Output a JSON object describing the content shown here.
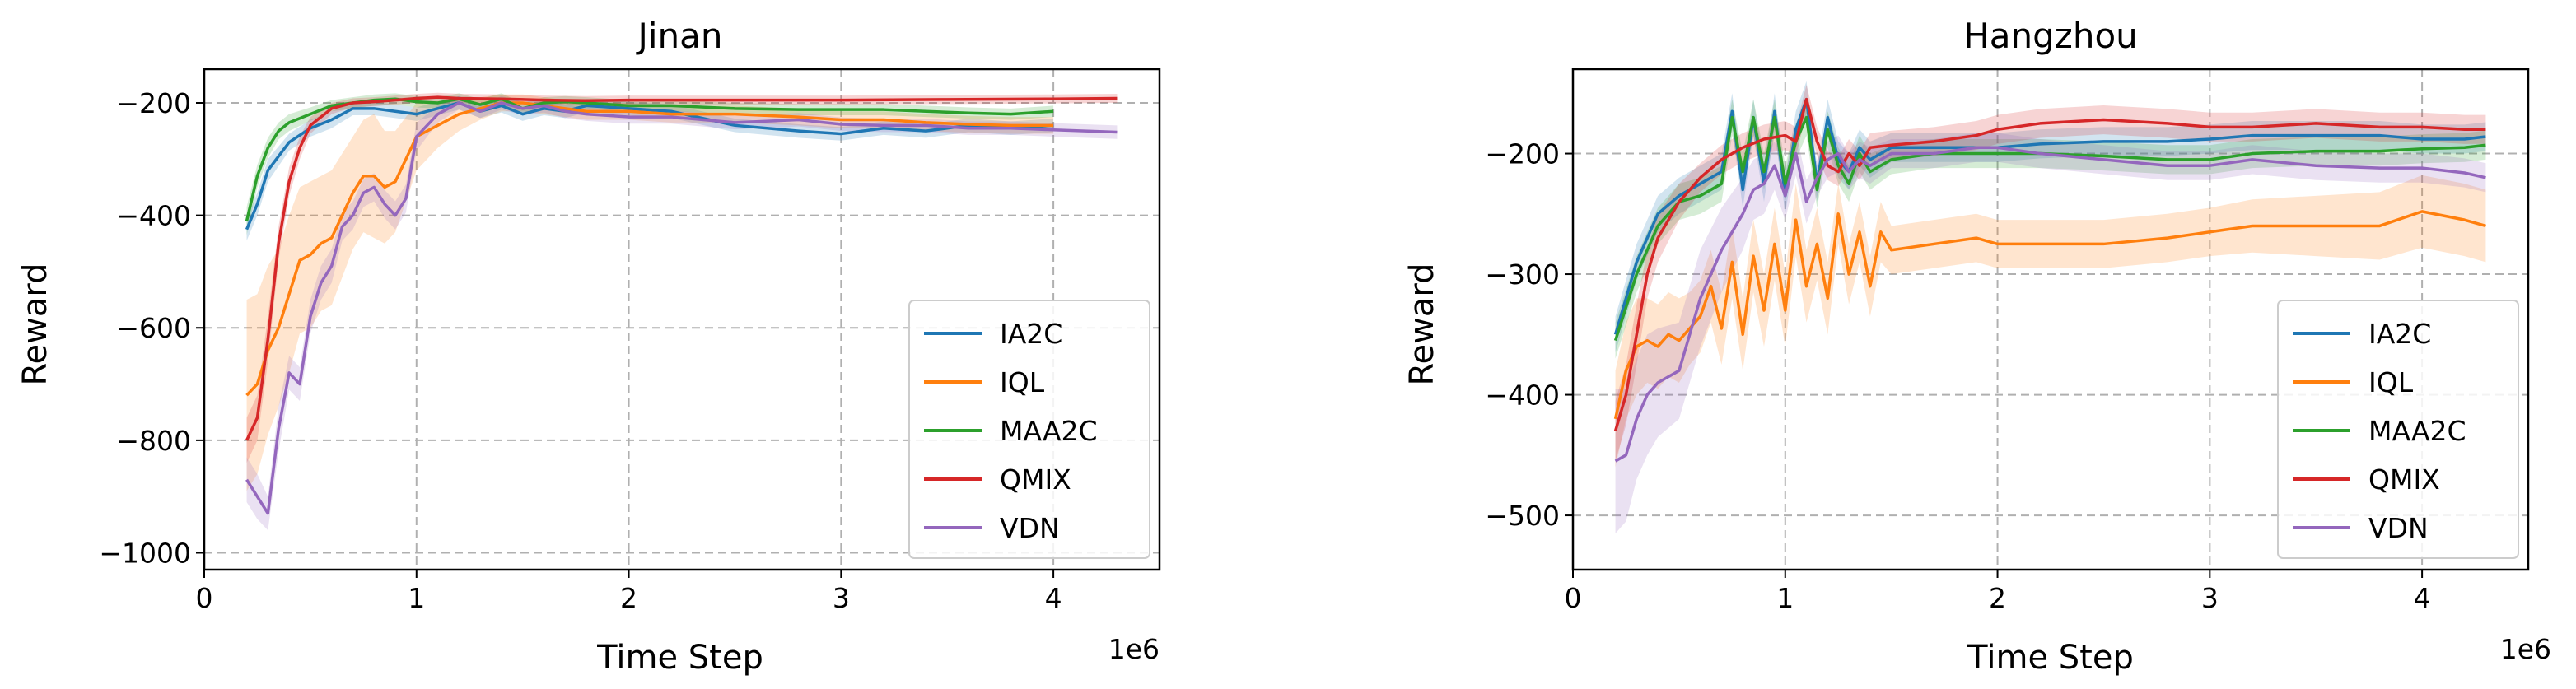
{
  "chart_data": [
    {
      "type": "line",
      "title": "Jinan",
      "xlabel": "Time Step",
      "ylabel": "Reward",
      "x_offset_label": "1e6",
      "xlim": [
        0,
        4.5
      ],
      "ylim": [
        -1030,
        -140
      ],
      "x_ticks": [
        0,
        1,
        2,
        3,
        4
      ],
      "x_tick_labels": [
        "0",
        "1",
        "2",
        "3",
        "4"
      ],
      "y_ticks": [
        -200,
        -400,
        -600,
        -800,
        -1000
      ],
      "y_tick_labels": [
        "−200",
        "−400",
        "−600",
        "−800",
        "−1000"
      ],
      "grid": true,
      "legend_position": "lower-right",
      "series": [
        {
          "name": "IA2C",
          "color": "#1f77b4",
          "x": [
            0.2,
            0.25,
            0.3,
            0.4,
            0.5,
            0.6,
            0.7,
            0.8,
            0.9,
            1.0,
            1.1,
            1.2,
            1.3,
            1.4,
            1.5,
            1.6,
            1.7,
            1.8,
            2.0,
            2.2,
            2.5,
            2.8,
            3.0,
            3.2,
            3.4,
            3.6,
            3.8,
            4.0
          ],
          "y": [
            -425,
            -380,
            -320,
            -270,
            -245,
            -230,
            -210,
            -210,
            -215,
            -220,
            -210,
            -200,
            -215,
            -205,
            -220,
            -210,
            -215,
            -205,
            -210,
            -215,
            -240,
            -250,
            -255,
            -245,
            -250,
            -240,
            -245,
            -240
          ],
          "band": [
            20,
            20,
            20,
            15,
            15,
            15,
            12,
            12,
            12,
            12,
            12,
            12,
            12,
            12,
            12,
            12,
            12,
            12,
            12,
            12,
            12,
            12,
            12,
            12,
            12,
            12,
            12,
            12
          ]
        },
        {
          "name": "IQL",
          "color": "#ff7f0e",
          "x": [
            0.2,
            0.25,
            0.3,
            0.35,
            0.4,
            0.45,
            0.5,
            0.55,
            0.6,
            0.65,
            0.7,
            0.75,
            0.8,
            0.85,
            0.9,
            1.0,
            1.1,
            1.2,
            1.3,
            1.4,
            1.5,
            1.6,
            1.7,
            1.8,
            2.0,
            2.2,
            2.5,
            2.8,
            3.0,
            3.2,
            3.4,
            3.6,
            3.8,
            4.0
          ],
          "y": [
            -720,
            -700,
            -640,
            -600,
            -540,
            -480,
            -470,
            -450,
            -440,
            -400,
            -360,
            -330,
            -330,
            -350,
            -340,
            -260,
            -240,
            -220,
            -210,
            -200,
            -200,
            -205,
            -210,
            -215,
            -215,
            -220,
            -220,
            -225,
            -230,
            -230,
            -235,
            -238,
            -240,
            -240
          ],
          "band": [
            170,
            160,
            150,
            140,
            140,
            130,
            130,
            120,
            120,
            110,
            100,
            100,
            110,
            100,
            90,
            60,
            40,
            30,
            20,
            15,
            15,
            15,
            15,
            15,
            15,
            15,
            15,
            15,
            15,
            15,
            15,
            15,
            15,
            15
          ]
        },
        {
          "name": "MAA2C",
          "color": "#2ca02c",
          "x": [
            0.2,
            0.25,
            0.3,
            0.35,
            0.4,
            0.5,
            0.6,
            0.7,
            0.8,
            0.9,
            1.0,
            1.1,
            1.2,
            1.3,
            1.4,
            1.5,
            1.6,
            1.7,
            1.8,
            2.0,
            2.2,
            2.5,
            2.8,
            3.0,
            3.2,
            3.4,
            3.6,
            3.8,
            4.0
          ],
          "y": [
            -410,
            -330,
            -280,
            -250,
            -235,
            -220,
            -205,
            -200,
            -195,
            -193,
            -198,
            -200,
            -193,
            -203,
            -193,
            -210,
            -200,
            -198,
            -200,
            -205,
            -205,
            -210,
            -212,
            -212,
            -212,
            -215,
            -218,
            -220,
            -215
          ],
          "band": [
            25,
            20,
            18,
            15,
            15,
            12,
            10,
            10,
            10,
            10,
            10,
            10,
            10,
            10,
            10,
            10,
            10,
            10,
            10,
            10,
            10,
            10,
            10,
            10,
            10,
            10,
            10,
            10,
            10
          ]
        },
        {
          "name": "QMIX",
          "color": "#d62728",
          "x": [
            0.2,
            0.25,
            0.3,
            0.35,
            0.4,
            0.45,
            0.5,
            0.6,
            0.7,
            0.8,
            0.9,
            1.0,
            1.1,
            1.2,
            1.4,
            1.6,
            1.8,
            2.0,
            2.5,
            3.0,
            3.5,
            4.0,
            4.3
          ],
          "y": [
            -800,
            -760,
            -620,
            -450,
            -340,
            -280,
            -240,
            -210,
            -200,
            -198,
            -195,
            -192,
            -190,
            -192,
            -193,
            -195,
            -196,
            -195,
            -195,
            -195,
            -194,
            -193,
            -192
          ],
          "band": [
            40,
            40,
            40,
            30,
            25,
            20,
            15,
            10,
            8,
            8,
            8,
            8,
            8,
            8,
            8,
            8,
            8,
            8,
            8,
            8,
            8,
            8,
            8
          ]
        },
        {
          "name": "VDN",
          "color": "#9467bd",
          "x": [
            0.2,
            0.25,
            0.3,
            0.35,
            0.4,
            0.45,
            0.5,
            0.55,
            0.6,
            0.65,
            0.7,
            0.75,
            0.8,
            0.85,
            0.9,
            0.95,
            1.0,
            1.05,
            1.1,
            1.2,
            1.3,
            1.4,
            1.5,
            1.6,
            1.7,
            1.8,
            2.0,
            2.2,
            2.5,
            2.8,
            3.0,
            3.2,
            3.4,
            3.6,
            3.8,
            4.0,
            4.3
          ],
          "y": [
            -870,
            -900,
            -930,
            -780,
            -680,
            -700,
            -580,
            -520,
            -490,
            -420,
            -400,
            -360,
            -350,
            -380,
            -400,
            -370,
            -260,
            -240,
            -220,
            -200,
            -215,
            -200,
            -210,
            -205,
            -215,
            -220,
            -225,
            -225,
            -235,
            -230,
            -238,
            -240,
            -240,
            -245,
            -245,
            -248,
            -252
          ],
          "band": [
            40,
            40,
            30,
            40,
            30,
            30,
            30,
            30,
            30,
            25,
            25,
            25,
            25,
            25,
            25,
            25,
            25,
            20,
            15,
            12,
            12,
            12,
            12,
            12,
            12,
            12,
            12,
            12,
            12,
            12,
            12,
            12,
            12,
            12,
            12,
            12,
            12
          ]
        }
      ]
    },
    {
      "type": "line",
      "title": "Hangzhou",
      "xlabel": "Time Step",
      "ylabel": "Reward",
      "x_offset_label": "1e6",
      "xlim": [
        0,
        4.5
      ],
      "ylim": [
        -545,
        -130
      ],
      "x_ticks": [
        0,
        1,
        2,
        3,
        4
      ],
      "x_tick_labels": [
        "0",
        "1",
        "2",
        "3",
        "4"
      ],
      "y_ticks": [
        -200,
        -300,
        -400,
        -500
      ],
      "y_tick_labels": [
        "−200",
        "−300",
        "−400",
        "−500"
      ],
      "grid": true,
      "legend_position": "lower-right",
      "series": [
        {
          "name": "IA2C",
          "color": "#1f77b4",
          "x": [
            0.2,
            0.3,
            0.4,
            0.5,
            0.6,
            0.7,
            0.75,
            0.8,
            0.85,
            0.9,
            0.95,
            1.0,
            1.05,
            1.1,
            1.15,
            1.2,
            1.25,
            1.3,
            1.35,
            1.4,
            1.5,
            1.7,
            1.9,
            2.0,
            2.2,
            2.5,
            2.8,
            3.0,
            3.2,
            3.5,
            3.8,
            4.0,
            4.2,
            4.3
          ],
          "y": [
            -350,
            -290,
            -250,
            -235,
            -225,
            -215,
            -165,
            -230,
            -170,
            -225,
            -165,
            -235,
            -180,
            -155,
            -225,
            -170,
            -205,
            -215,
            -195,
            -205,
            -195,
            -195,
            -195,
            -195,
            -192,
            -190,
            -190,
            -188,
            -185,
            -185,
            -185,
            -188,
            -188,
            -186
          ],
          "band": [
            15,
            15,
            15,
            15,
            15,
            15,
            15,
            15,
            15,
            15,
            15,
            15,
            15,
            15,
            15,
            15,
            15,
            15,
            15,
            15,
            12,
            12,
            12,
            12,
            12,
            12,
            12,
            12,
            12,
            12,
            12,
            12,
            12,
            12
          ]
        },
        {
          "name": "IQL",
          "color": "#ff7f0e",
          "x": [
            0.2,
            0.25,
            0.3,
            0.35,
            0.4,
            0.45,
            0.5,
            0.55,
            0.6,
            0.65,
            0.7,
            0.75,
            0.8,
            0.85,
            0.9,
            0.95,
            1.0,
            1.05,
            1.1,
            1.15,
            1.2,
            1.25,
            1.3,
            1.35,
            1.4,
            1.45,
            1.5,
            1.7,
            1.9,
            2.0,
            2.2,
            2.5,
            2.8,
            3.0,
            3.2,
            3.5,
            3.8,
            4.0,
            4.2,
            4.3
          ],
          "y": [
            -420,
            -380,
            -360,
            -355,
            -360,
            -350,
            -355,
            -345,
            -335,
            -310,
            -345,
            -290,
            -350,
            -285,
            -330,
            -275,
            -330,
            -255,
            -310,
            -275,
            -320,
            -250,
            -300,
            -265,
            -310,
            -265,
            -280,
            -275,
            -270,
            -275,
            -275,
            -275,
            -270,
            -265,
            -260,
            -260,
            -260,
            -248,
            -255,
            -260
          ],
          "band": [
            40,
            40,
            40,
            35,
            35,
            35,
            35,
            30,
            30,
            30,
            30,
            30,
            30,
            30,
            30,
            30,
            30,
            30,
            30,
            30,
            30,
            25,
            25,
            25,
            25,
            25,
            20,
            20,
            20,
            20,
            20,
            20,
            20,
            20,
            22,
            25,
            28,
            30,
            30,
            30
          ]
        },
        {
          "name": "MAA2C",
          "color": "#2ca02c",
          "x": [
            0.2,
            0.3,
            0.4,
            0.5,
            0.6,
            0.7,
            0.75,
            0.8,
            0.85,
            0.9,
            0.95,
            1.0,
            1.05,
            1.1,
            1.15,
            1.2,
            1.25,
            1.3,
            1.35,
            1.4,
            1.5,
            1.7,
            1.9,
            2.0,
            2.2,
            2.5,
            2.8,
            3.0,
            3.2,
            3.5,
            3.8,
            4.0,
            4.2,
            4.3
          ],
          "y": [
            -355,
            -300,
            -260,
            -240,
            -235,
            -225,
            -170,
            -215,
            -170,
            -215,
            -170,
            -225,
            -190,
            -170,
            -230,
            -180,
            -210,
            -225,
            -200,
            -215,
            -205,
            -200,
            -200,
            -200,
            -200,
            -202,
            -205,
            -205,
            -200,
            -198,
            -198,
            -196,
            -195,
            -193
          ],
          "band": [
            15,
            15,
            15,
            15,
            15,
            15,
            15,
            15,
            15,
            15,
            15,
            15,
            15,
            15,
            15,
            15,
            15,
            15,
            15,
            15,
            12,
            12,
            12,
            12,
            12,
            12,
            12,
            12,
            12,
            12,
            12,
            12,
            12,
            12
          ]
        },
        {
          "name": "QMIX",
          "color": "#d62728",
          "x": [
            0.2,
            0.25,
            0.3,
            0.35,
            0.4,
            0.5,
            0.6,
            0.7,
            0.8,
            0.9,
            1.0,
            1.05,
            1.1,
            1.15,
            1.2,
            1.25,
            1.3,
            1.35,
            1.4,
            1.5,
            1.7,
            1.9,
            2.0,
            2.2,
            2.5,
            2.8,
            3.0,
            3.2,
            3.5,
            3.8,
            4.0,
            4.2,
            4.3
          ],
          "y": [
            -430,
            -400,
            -350,
            -300,
            -270,
            -240,
            -220,
            -205,
            -195,
            -188,
            -185,
            -190,
            -155,
            -190,
            -210,
            -215,
            -200,
            -210,
            -195,
            -193,
            -190,
            -185,
            -180,
            -175,
            -172,
            -175,
            -178,
            -178,
            -175,
            -178,
            -178,
            -180,
            -180
          ],
          "band": [
            25,
            25,
            25,
            20,
            20,
            15,
            12,
            12,
            12,
            12,
            12,
            12,
            12,
            12,
            12,
            12,
            12,
            12,
            12,
            12,
            12,
            12,
            12,
            12,
            12,
            12,
            12,
            12,
            12,
            12,
            12,
            12,
            12
          ]
        },
        {
          "name": "VDN",
          "color": "#9467bd",
          "x": [
            0.2,
            0.25,
            0.3,
            0.35,
            0.4,
            0.5,
            0.6,
            0.7,
            0.8,
            0.85,
            0.9,
            0.95,
            1.0,
            1.05,
            1.1,
            1.15,
            1.2,
            1.25,
            1.3,
            1.35,
            1.4,
            1.5,
            1.7,
            1.9,
            2.0,
            2.2,
            2.5,
            2.8,
            3.0,
            3.2,
            3.5,
            3.8,
            4.0,
            4.2,
            4.3
          ],
          "y": [
            -455,
            -450,
            -420,
            -400,
            -390,
            -380,
            -320,
            -280,
            -250,
            -230,
            -225,
            -210,
            -235,
            -200,
            -240,
            -220,
            -205,
            -200,
            -215,
            -205,
            -210,
            -200,
            -200,
            -195,
            -195,
            -200,
            -205,
            -210,
            -210,
            -205,
            -210,
            -212,
            -212,
            -216,
            -220
          ],
          "band": [
            60,
            55,
            50,
            50,
            45,
            40,
            40,
            35,
            30,
            25,
            25,
            20,
            20,
            18,
            18,
            15,
            15,
            15,
            15,
            15,
            15,
            12,
            12,
            12,
            12,
            12,
            12,
            12,
            12,
            12,
            12,
            12,
            12,
            12,
            12
          ]
        }
      ]
    }
  ]
}
